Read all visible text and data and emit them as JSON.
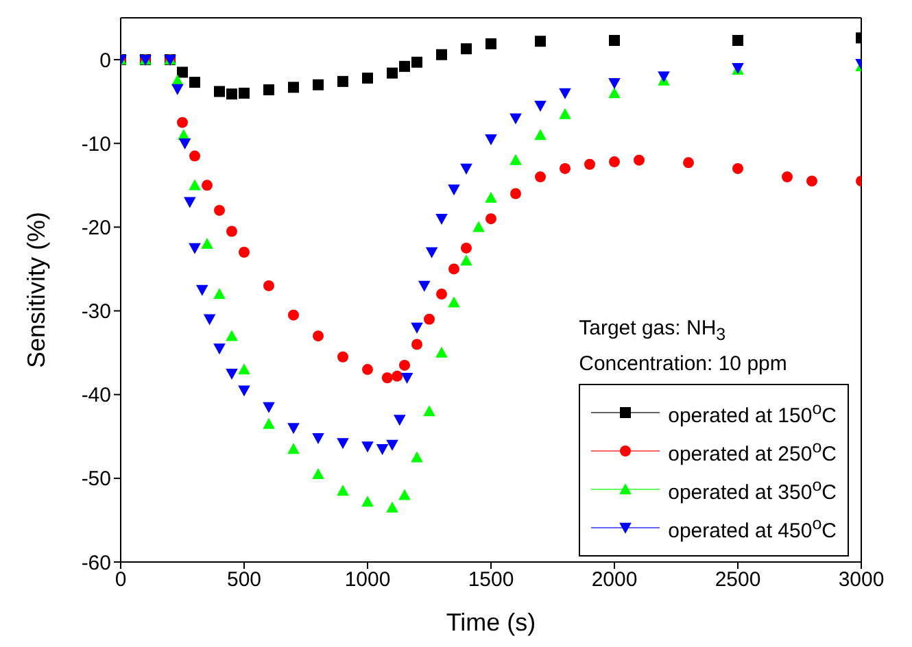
{
  "chart_data": {
    "type": "scatter",
    "xlabel": "Time (s)",
    "ylabel": "Sensitivity (%)",
    "xlim": [
      0,
      3000
    ],
    "xticks": [
      0,
      500,
      1000,
      1500,
      2000,
      2500,
      3000
    ],
    "ylim": [
      -60,
      5
    ],
    "yticks": [
      -60,
      -50,
      -40,
      -30,
      -20,
      -10,
      0
    ],
    "legend": "bottom right",
    "annotations": [
      "Target gas: NH$_{3}$",
      "Concentration: 10 ppm"
    ],
    "series": [
      {
        "name": "operated at 150$^{o}$C",
        "color": "#000000",
        "marker": "square",
        "x": [
          0,
          100,
          200,
          250,
          300,
          400,
          450,
          500,
          600,
          700,
          800,
          900,
          1000,
          1100,
          1150,
          1200,
          1300,
          1400,
          1500,
          1700,
          2000,
          2500,
          3000
        ],
        "values": [
          0,
          0,
          0,
          -1.5,
          -2.7,
          -3.8,
          -4.1,
          -4.0,
          -3.6,
          -3.3,
          -3.0,
          -2.6,
          -2.2,
          -1.6,
          -0.8,
          -0.3,
          0.6,
          1.3,
          1.9,
          2.2,
          2.3,
          2.3,
          2.6
        ]
      },
      {
        "name": "operated at 250$^{o}$C",
        "color": "#ff0000",
        "marker": "circle",
        "x": [
          0,
          100,
          200,
          250,
          300,
          350,
          400,
          450,
          500,
          600,
          700,
          800,
          900,
          1000,
          1080,
          1120,
          1150,
          1200,
          1250,
          1300,
          1350,
          1400,
          1500,
          1600,
          1700,
          1800,
          1900,
          2000,
          2100,
          2300,
          2500,
          2700,
          2800,
          3000
        ],
        "values": [
          0,
          0,
          0,
          -7.5,
          -11.5,
          -15,
          -18,
          -20.5,
          -23,
          -27,
          -30.5,
          -33,
          -35.5,
          -37,
          -38,
          -37.8,
          -36.5,
          -34,
          -31,
          -28,
          -25,
          -22.5,
          -19,
          -16,
          -14,
          -13,
          -12.5,
          -12.2,
          -12,
          -12.3,
          -13,
          -14,
          -14.5,
          -14.5
        ]
      },
      {
        "name": "operated at 350$^{o}$C",
        "color": "#00ff00",
        "marker": "triangle",
        "x": [
          0,
          100,
          200,
          230,
          255,
          300,
          350,
          400,
          450,
          500,
          600,
          700,
          800,
          900,
          1000,
          1100,
          1150,
          1200,
          1250,
          1300,
          1350,
          1400,
          1450,
          1500,
          1600,
          1700,
          1800,
          2000,
          2200,
          2500,
          3000
        ],
        "values": [
          0,
          0,
          0,
          -2.5,
          -9,
          -15,
          -22,
          -28,
          -33,
          -37,
          -43.5,
          -46.5,
          -49.5,
          -51.5,
          -52.8,
          -53.5,
          -52,
          -47.5,
          -42,
          -35,
          -29,
          -24,
          -20,
          -16.5,
          -12,
          -9,
          -6.5,
          -4,
          -2.5,
          -1.2,
          -0.8
        ]
      },
      {
        "name": "operated at 450$^{o}$C",
        "color": "#0000ff",
        "marker": "triangle-down",
        "x": [
          0,
          100,
          200,
          230,
          260,
          280,
          300,
          330,
          360,
          400,
          450,
          500,
          600,
          700,
          800,
          900,
          1000,
          1060,
          1100,
          1130,
          1160,
          1200,
          1230,
          1260,
          1300,
          1350,
          1400,
          1500,
          1600,
          1700,
          1800,
          2000,
          2200,
          2500,
          3000
        ],
        "values": [
          0,
          0,
          0,
          -3.5,
          -10,
          -17,
          -22.5,
          -27.5,
          -31,
          -34.5,
          -37.5,
          -39.5,
          -41.5,
          -44,
          -45.2,
          -45.8,
          -46.2,
          -46.5,
          -46,
          -43,
          -38,
          -32,
          -27,
          -23,
          -19,
          -15.5,
          -13,
          -9.5,
          -7,
          -5.5,
          -4,
          -2.8,
          -2,
          -1,
          -0.5
        ]
      }
    ]
  }
}
